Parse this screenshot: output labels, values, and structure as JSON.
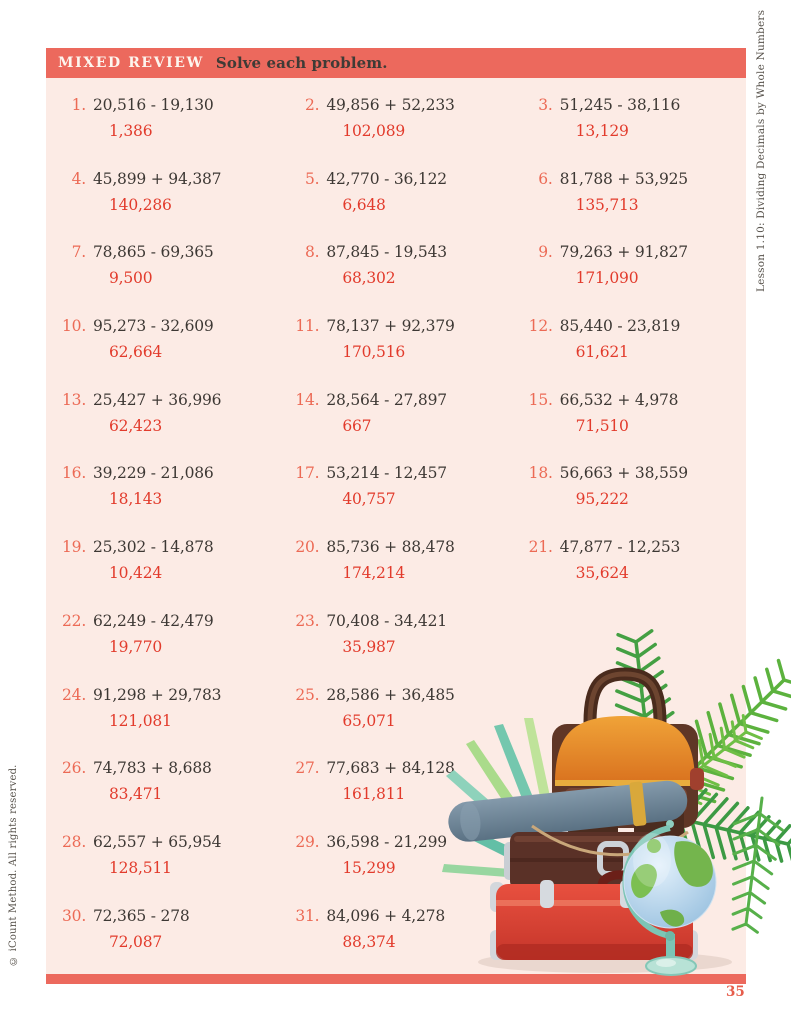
{
  "header": {
    "badge": "MIXED REVIEW",
    "instruction": "Solve each problem."
  },
  "sidebar_right": {
    "text": "Lesson 1.10: Dividing Decimals by Whole Numbers"
  },
  "sidebar_left": {
    "text": "© iCount Method. All rights reserved."
  },
  "page": {
    "number": "35"
  },
  "colors": {
    "coral_bar": "#ec695d",
    "content_background": "#fcebe5",
    "problem_number": "#ec6a55",
    "problem_text": "#3d3834",
    "answer_red": "#e23b2c",
    "page_number_red": "#e65d4b"
  },
  "illustration": {
    "alt": "Stacked vintage suitcases with palm leaves and a desk globe"
  },
  "problem_rows": [
    [
      {
        "n": "1.",
        "expr": "20,516 - 19,130",
        "ans": "1,386"
      },
      {
        "n": "2.",
        "expr": "49,856 + 52,233",
        "ans": "102,089"
      },
      {
        "n": "3.",
        "expr": "51,245 - 38,116",
        "ans": "13,129"
      }
    ],
    [
      {
        "n": "4.",
        "expr": "45,899 + 94,387",
        "ans": "140,286"
      },
      {
        "n": "5.",
        "expr": "42,770 - 36,122",
        "ans": "6,648"
      },
      {
        "n": "6.",
        "expr": "81,788 + 53,925",
        "ans": "135,713"
      }
    ],
    [
      {
        "n": "7.",
        "expr": "78,865 - 69,365",
        "ans": "9,500"
      },
      {
        "n": "8.",
        "expr": "87,845 - 19,543",
        "ans": "68,302"
      },
      {
        "n": "9.",
        "expr": "79,263 + 91,827",
        "ans": "171,090"
      }
    ],
    [
      {
        "n": "10.",
        "expr": "95,273 - 32,609",
        "ans": "62,664"
      },
      {
        "n": "11.",
        "expr": "78,137 + 92,379",
        "ans": "170,516"
      },
      {
        "n": "12.",
        "expr": "85,440 - 23,819",
        "ans": "61,621"
      }
    ],
    [
      {
        "n": "13.",
        "expr": "25,427 + 36,996",
        "ans": "62,423"
      },
      {
        "n": "14.",
        "expr": "28,564 - 27,897",
        "ans": "667"
      },
      {
        "n": "15.",
        "expr": "66,532 + 4,978",
        "ans": "71,510"
      }
    ],
    [
      {
        "n": "16.",
        "expr": "39,229 - 21,086",
        "ans": "18,143"
      },
      {
        "n": "17.",
        "expr": "53,214 - 12,457",
        "ans": "40,757"
      },
      {
        "n": "18.",
        "expr": "56,663 + 38,559",
        "ans": "95,222"
      }
    ],
    [
      {
        "n": "19.",
        "expr": "25,302 - 14,878",
        "ans": "10,424"
      },
      {
        "n": "20.",
        "expr": "85,736 + 88,478",
        "ans": "174,214"
      },
      {
        "n": "21.",
        "expr": "47,877 - 12,253",
        "ans": "35,624"
      }
    ],
    [
      {
        "n": "22.",
        "expr": "62,249 - 42,479",
        "ans": "19,770"
      },
      {
        "n": "23.",
        "expr": "70,408 - 34,421",
        "ans": "35,987"
      }
    ],
    [
      {
        "n": "24.",
        "expr": "91,298 + 29,783",
        "ans": "121,081"
      },
      {
        "n": "25.",
        "expr": "28,586 + 36,485",
        "ans": "65,071"
      }
    ],
    [
      {
        "n": "26.",
        "expr": "74,783 + 8,688",
        "ans": "83,471"
      },
      {
        "n": "27.",
        "expr": "77,683 + 84,128",
        "ans": "161,811"
      }
    ],
    [
      {
        "n": "28.",
        "expr": "62,557 + 65,954",
        "ans": "128,511"
      },
      {
        "n": "29.",
        "expr": "36,598 - 21,299",
        "ans": "15,299"
      }
    ],
    [
      {
        "n": "30.",
        "expr": "72,365 - 278",
        "ans": "72,087"
      },
      {
        "n": "31.",
        "expr": "84,096 + 4,278",
        "ans": "88,374"
      }
    ]
  ]
}
